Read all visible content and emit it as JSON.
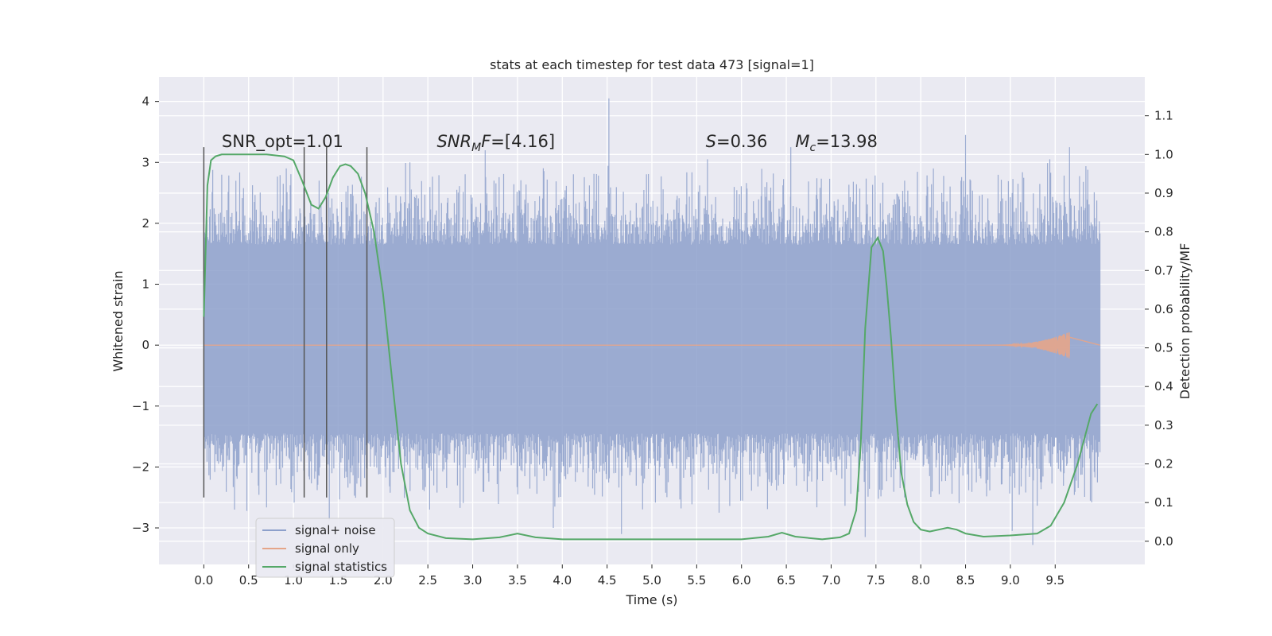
{
  "chart_data": {
    "type": "line",
    "title": "stats at each timestep for test data 473 [signal=1]",
    "xlabel": "Time (s)",
    "ylabel": "Whitened strain",
    "ylabel_right": "Detection probability/MF",
    "xlim": [
      -0.5,
      10.5
    ],
    "ylim": [
      -3.6,
      4.4
    ],
    "ylim_right": [
      -0.06,
      1.2
    ],
    "x_ticks": [
      0.0,
      0.5,
      1.0,
      1.5,
      2.0,
      2.5,
      3.0,
      3.5,
      4.0,
      4.5,
      5.0,
      5.5,
      6.0,
      6.5,
      7.0,
      7.5,
      8.0,
      8.5,
      9.0,
      9.5
    ],
    "x_tick_labels": [
      "0.0",
      "0.5",
      "1.0",
      "1.5",
      "2.0",
      "2.5",
      "3.0",
      "3.5",
      "4.0",
      "4.5",
      "5.0",
      "5.5",
      "6.0",
      "6.5",
      "7.0",
      "7.5",
      "8.0",
      "8.5",
      "9.0",
      "9.5"
    ],
    "y_ticks": [
      -3,
      -2,
      -1,
      0,
      1,
      2,
      3,
      4
    ],
    "y_tick_labels": [
      "−3",
      "−2",
      "−1",
      "0",
      "1",
      "2",
      "3",
      "4"
    ],
    "y_right_ticks": [
      0.0,
      0.1,
      0.2,
      0.3,
      0.4,
      0.5,
      0.6,
      0.7,
      0.8,
      0.9,
      1.0,
      1.1
    ],
    "y_right_tick_labels": [
      "0.0",
      "0.1",
      "0.2",
      "0.3",
      "0.4",
      "0.5",
      "0.6",
      "0.7",
      "0.8",
      "0.9",
      "1.0",
      "1.1"
    ],
    "grid": true,
    "legend_position": "lower-left",
    "legend": [
      {
        "label": "signal+ noise",
        "color": "#8da0cb"
      },
      {
        "label": "signal only",
        "color": "#e5a589"
      },
      {
        "label": "signal statistics",
        "color": "#55a868"
      }
    ],
    "annotations": [
      {
        "x": 0.2,
        "y": 3.25,
        "text": "SNR_opt=1.01"
      },
      {
        "x": 2.6,
        "y": 3.25,
        "parts": [
          {
            "t": "SNR"
          },
          {
            "t": "M",
            "sub": true
          },
          {
            "t": "F"
          },
          {
            "t": "=[4.16]",
            "plain": true
          }
        ]
      },
      {
        "x": 5.6,
        "y": 3.25,
        "parts": [
          {
            "t": "S"
          },
          {
            "t": "=0.36",
            "plain": true
          }
        ]
      },
      {
        "x": 6.6,
        "y": 3.25,
        "parts": [
          {
            "t": "M"
          },
          {
            "t": "c",
            "sub": true
          },
          {
            "t": "=13.98",
            "plain": true
          }
        ]
      }
    ],
    "vlines": [
      {
        "x": 0.0,
        "y": [
          -2.5,
          3.25
        ]
      },
      {
        "x": 1.12,
        "y": [
          -2.5,
          3.25
        ]
      },
      {
        "x": 1.37,
        "y": [
          -2.5,
          3.25
        ]
      },
      {
        "x": 1.82,
        "y": [
          -2.5,
          3.25
        ]
      }
    ],
    "series": [
      {
        "name": "signal+ noise",
        "axis": "left",
        "color": "#8da0cb",
        "x_range": [
          0.0,
          10.0
        ],
        "band_core": [
          -1.35,
          1.55
        ],
        "spikes": [
          {
            "x": 4.52,
            "y": 4.05
          },
          {
            "x": 8.5,
            "y": 3.45
          },
          {
            "x": 9.66,
            "y": 3.25
          },
          {
            "x": 3.14,
            "y": 3.2
          },
          {
            "x": 5.62,
            "y": 3.05
          },
          {
            "x": 6.55,
            "y": 3.25
          },
          {
            "x": 0.92,
            "y": 2.9
          },
          {
            "x": 9.44,
            "y": 3.05
          },
          {
            "x": 2.3,
            "y": 3.0
          },
          {
            "x": 0.48,
            "y": -2.72
          },
          {
            "x": 1.4,
            "y": -2.88
          },
          {
            "x": 3.9,
            "y": -3.0
          },
          {
            "x": 4.66,
            "y": -3.1
          },
          {
            "x": 7.38,
            "y": -3.15
          },
          {
            "x": 9.25,
            "y": -3.28
          },
          {
            "x": 9.02,
            "y": -3.05
          },
          {
            "x": 5.75,
            "y": -2.75
          },
          {
            "x": 2.52,
            "y": -2.7
          }
        ]
      },
      {
        "name": "signal only",
        "axis": "left",
        "color": "#e5a589",
        "x_range": [
          0.0,
          10.0
        ],
        "chirp_end": 9.66,
        "chirp_peak_amplitude": 0.22
      },
      {
        "name": "signal statistics",
        "axis": "right",
        "color": "#55a868",
        "x": [
          0.0,
          0.04,
          0.08,
          0.13,
          0.2,
          0.3,
          0.5,
          0.7,
          0.9,
          1.0,
          1.1,
          1.2,
          1.28,
          1.36,
          1.44,
          1.52,
          1.58,
          1.64,
          1.72,
          1.8,
          1.9,
          2.0,
          2.1,
          2.2,
          2.3,
          2.4,
          2.5,
          2.7,
          3.0,
          3.3,
          3.5,
          3.7,
          4.0,
          4.5,
          5.0,
          5.5,
          6.0,
          6.3,
          6.45,
          6.6,
          6.9,
          7.1,
          7.2,
          7.28,
          7.33,
          7.38,
          7.45,
          7.52,
          7.58,
          7.62,
          7.67,
          7.72,
          7.78,
          7.85,
          7.92,
          8.0,
          8.1,
          8.3,
          8.4,
          8.5,
          8.7,
          9.0,
          9.3,
          9.45,
          9.6,
          9.75,
          9.9,
          9.97
        ],
        "y": [
          0.58,
          0.92,
          0.985,
          0.995,
          1.0,
          1.0,
          1.0,
          1.0,
          0.995,
          0.985,
          0.93,
          0.87,
          0.86,
          0.89,
          0.94,
          0.97,
          0.975,
          0.97,
          0.95,
          0.9,
          0.8,
          0.64,
          0.42,
          0.2,
          0.08,
          0.035,
          0.02,
          0.008,
          0.005,
          0.01,
          0.02,
          0.01,
          0.005,
          0.005,
          0.005,
          0.005,
          0.005,
          0.012,
          0.022,
          0.012,
          0.005,
          0.01,
          0.02,
          0.08,
          0.25,
          0.55,
          0.76,
          0.785,
          0.75,
          0.66,
          0.52,
          0.35,
          0.18,
          0.095,
          0.05,
          0.03,
          0.025,
          0.035,
          0.03,
          0.02,
          0.012,
          0.015,
          0.02,
          0.04,
          0.1,
          0.2,
          0.33,
          0.355
        ]
      }
    ]
  }
}
